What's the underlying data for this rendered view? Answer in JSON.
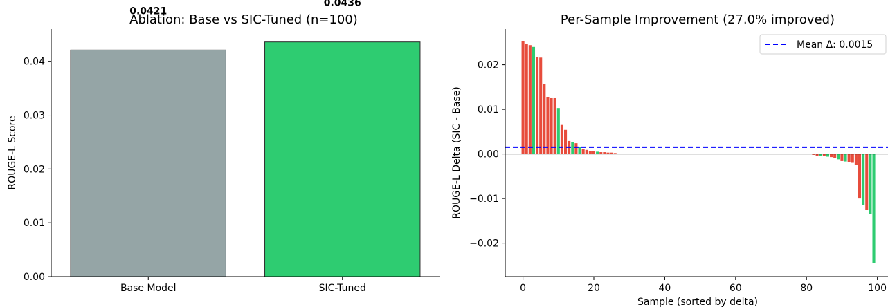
{
  "chart_data": [
    {
      "type": "bar",
      "title": "Ablation: Base vs SIC-Tuned (n=100)",
      "xlabel": "",
      "ylabel": "ROUGE-L Score",
      "categories": [
        "Base Model",
        "SIC-Tuned"
      ],
      "values": [
        0.0421,
        0.0436
      ],
      "value_labels": [
        "0.0421",
        "0.0436"
      ],
      "colors": [
        "#95a5a6",
        "#2ecc71"
      ],
      "ylim": [
        0,
        0.046
      ],
      "yticks": [
        0.0,
        0.01,
        0.02,
        0.03,
        0.04
      ],
      "ytick_labels": [
        "0.00",
        "0.01",
        "0.02",
        "0.03",
        "0.04"
      ],
      "grid": false
    },
    {
      "type": "bar",
      "title": "Per-Sample Improvement (27.0% improved)",
      "xlabel": "Sample (sorted by delta)",
      "ylabel": "ROUGE-L Delta (SIC - Base)",
      "xlim": [
        -5,
        103
      ],
      "ylim": [
        -0.0275,
        0.028
      ],
      "xticks": [
        0,
        20,
        40,
        60,
        80,
        100
      ],
      "xtick_labels": [
        "0",
        "20",
        "40",
        "60",
        "80",
        "100"
      ],
      "yticks": [
        -0.02,
        -0.01,
        0.0,
        0.01,
        0.02
      ],
      "ytick_labels": [
        "−0.02",
        "−0.01",
        "0.00",
        "0.01",
        "0.02"
      ],
      "colors": {
        "red": "#e74c3c",
        "green": "#2ecc71",
        "mean": "#0000ff"
      },
      "mean_line": {
        "value": 0.0015,
        "label": "Mean Δ: 0.0015"
      },
      "legend_position": "upper right",
      "grid": false,
      "points": [
        {
          "x": 0,
          "y": 0.0253,
          "color": "red"
        },
        {
          "x": 1,
          "y": 0.0247,
          "color": "red"
        },
        {
          "x": 2,
          "y": 0.0244,
          "color": "red"
        },
        {
          "x": 3,
          "y": 0.024,
          "color": "green"
        },
        {
          "x": 4,
          "y": 0.0218,
          "color": "red"
        },
        {
          "x": 5,
          "y": 0.0216,
          "color": "red"
        },
        {
          "x": 6,
          "y": 0.0157,
          "color": "red"
        },
        {
          "x": 7,
          "y": 0.0128,
          "color": "red"
        },
        {
          "x": 8,
          "y": 0.0125,
          "color": "red"
        },
        {
          "x": 9,
          "y": 0.0125,
          "color": "red"
        },
        {
          "x": 10,
          "y": 0.0103,
          "color": "green"
        },
        {
          "x": 11,
          "y": 0.0065,
          "color": "red"
        },
        {
          "x": 12,
          "y": 0.0054,
          "color": "red"
        },
        {
          "x": 13,
          "y": 0.0029,
          "color": "red"
        },
        {
          "x": 14,
          "y": 0.0027,
          "color": "green"
        },
        {
          "x": 15,
          "y": 0.0024,
          "color": "red"
        },
        {
          "x": 16,
          "y": 0.0015,
          "color": "green"
        },
        {
          "x": 17,
          "y": 0.0011,
          "color": "red"
        },
        {
          "x": 18,
          "y": 0.0009,
          "color": "red"
        },
        {
          "x": 19,
          "y": 0.0007,
          "color": "red"
        },
        {
          "x": 20,
          "y": 0.0006,
          "color": "red"
        },
        {
          "x": 21,
          "y": 0.0005,
          "color": "green"
        },
        {
          "x": 22,
          "y": 0.0004,
          "color": "red"
        },
        {
          "x": 23,
          "y": 0.0004,
          "color": "red"
        },
        {
          "x": 24,
          "y": 0.0003,
          "color": "red"
        },
        {
          "x": 25,
          "y": 0.0003,
          "color": "red"
        },
        {
          "x": 26,
          "y": 0.0002,
          "color": "red"
        },
        {
          "x": 82,
          "y": -0.0002,
          "color": "red"
        },
        {
          "x": 83,
          "y": -0.0004,
          "color": "red"
        },
        {
          "x": 84,
          "y": -0.0005,
          "color": "green"
        },
        {
          "x": 85,
          "y": -0.0005,
          "color": "red"
        },
        {
          "x": 86,
          "y": -0.0006,
          "color": "green"
        },
        {
          "x": 87,
          "y": -0.0007,
          "color": "red"
        },
        {
          "x": 88,
          "y": -0.0009,
          "color": "red"
        },
        {
          "x": 89,
          "y": -0.0012,
          "color": "green"
        },
        {
          "x": 90,
          "y": -0.0016,
          "color": "red"
        },
        {
          "x": 91,
          "y": -0.0017,
          "color": "green"
        },
        {
          "x": 92,
          "y": -0.0018,
          "color": "red"
        },
        {
          "x": 93,
          "y": -0.002,
          "color": "red"
        },
        {
          "x": 94,
          "y": -0.0025,
          "color": "red"
        },
        {
          "x": 95,
          "y": -0.01,
          "color": "red"
        },
        {
          "x": 96,
          "y": -0.0115,
          "color": "green"
        },
        {
          "x": 97,
          "y": -0.0125,
          "color": "red"
        },
        {
          "x": 98,
          "y": -0.0135,
          "color": "green"
        },
        {
          "x": 99,
          "y": -0.0245,
          "color": "green"
        }
      ]
    }
  ]
}
